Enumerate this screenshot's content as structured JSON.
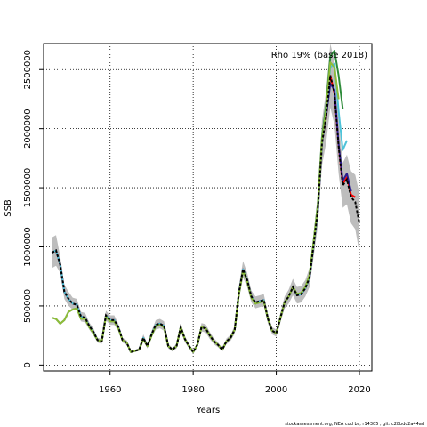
{
  "chart_data": {
    "type": "line",
    "title": "",
    "annotation": "Rho 19% (base 2018)",
    "xlabel": "Years",
    "ylabel": "SSB",
    "xlim": [
      1944,
      2023
    ],
    "ylim": [
      -50000,
      2720000
    ],
    "xticks": [
      1960,
      1980,
      2000,
      2020
    ],
    "yticks": [
      0,
      500000,
      1000000,
      1500000,
      2000000,
      2500000
    ],
    "ytick_labels": [
      "0",
      "500000",
      "1000000",
      "1500000",
      "2000000",
      "2500000"
    ],
    "grid": true,
    "footer": "stockassessment.org, NEA cod bs, r14305 , git: c28bdc2a44ad",
    "band_color": "#bdbdbd",
    "base_color": "#000000",
    "base_series": {
      "x": [
        1946,
        1947,
        1948,
        1949,
        1950,
        1951,
        1952,
        1953,
        1954,
        1955,
        1956,
        1957,
        1958,
        1959,
        1960,
        1961,
        1962,
        1963,
        1964,
        1965,
        1966,
        1967,
        1968,
        1969,
        1970,
        1971,
        1972,
        1973,
        1974,
        1975,
        1976,
        1977,
        1978,
        1979,
        1980,
        1981,
        1982,
        1983,
        1984,
        1985,
        1986,
        1987,
        1988,
        1989,
        1990,
        1991,
        1992,
        1993,
        1994,
        1995,
        1996,
        1997,
        1998,
        1999,
        2000,
        2001,
        2002,
        2003,
        2004,
        2005,
        2006,
        2007,
        2008,
        2009,
        2010,
        2011,
        2012,
        2013,
        2014,
        2015,
        2016,
        2017,
        2018,
        2019,
        2020
      ],
      "y": [
        950000,
        970000,
        850000,
        620000,
        560000,
        520000,
        510000,
        410000,
        400000,
        330000,
        280000,
        210000,
        200000,
        420000,
        380000,
        380000,
        320000,
        210000,
        190000,
        110000,
        120000,
        130000,
        230000,
        160000,
        260000,
        340000,
        350000,
        330000,
        160000,
        130000,
        160000,
        320000,
        220000,
        160000,
        110000,
        170000,
        320000,
        310000,
        250000,
        200000,
        170000,
        130000,
        200000,
        230000,
        300000,
        610000,
        810000,
        720000,
        580000,
        530000,
        540000,
        550000,
        390000,
        290000,
        270000,
        400000,
        530000,
        580000,
        660000,
        590000,
        600000,
        650000,
        740000,
        1020000,
        1310000,
        1880000,
        2100000,
        2450000,
        2300000,
        1850000,
        1520000,
        1570000,
        1420000,
        1380000,
        1200000
      ],
      "lower": [
        820000,
        840000,
        780000,
        560000,
        500000,
        470000,
        460000,
        370000,
        360000,
        300000,
        250000,
        190000,
        180000,
        380000,
        340000,
        340000,
        290000,
        190000,
        170000,
        100000,
        110000,
        120000,
        200000,
        140000,
        230000,
        300000,
        310000,
        290000,
        140000,
        115000,
        140000,
        285000,
        195000,
        140000,
        95000,
        150000,
        285000,
        275000,
        220000,
        175000,
        150000,
        115000,
        175000,
        205000,
        265000,
        550000,
        740000,
        660000,
        530000,
        480000,
        490000,
        500000,
        350000,
        260000,
        240000,
        360000,
        480000,
        520000,
        590000,
        520000,
        530000,
        580000,
        660000,
        920000,
        1180000,
        1690000,
        1880000,
        2180000,
        2030000,
        1620000,
        1330000,
        1360000,
        1200000,
        1150000,
        950000
      ],
      "upper": [
        1080000,
        1100000,
        920000,
        680000,
        620000,
        570000,
        560000,
        450000,
        440000,
        360000,
        310000,
        230000,
        220000,
        460000,
        420000,
        420000,
        350000,
        230000,
        210000,
        120000,
        130000,
        140000,
        260000,
        180000,
        290000,
        380000,
        390000,
        370000,
        180000,
        145000,
        180000,
        355000,
        245000,
        180000,
        125000,
        190000,
        355000,
        345000,
        280000,
        225000,
        190000,
        145000,
        225000,
        255000,
        335000,
        670000,
        880000,
        780000,
        630000,
        580000,
        590000,
        600000,
        430000,
        320000,
        300000,
        440000,
        580000,
        640000,
        730000,
        660000,
        670000,
        720000,
        820000,
        1120000,
        1440000,
        2070000,
        2320000,
        2720000,
        2570000,
        2080000,
        1710000,
        1780000,
        1640000,
        1610000,
        1450000
      ]
    },
    "retro_series": [
      {
        "color": "#ff0000",
        "x": [
          1946,
          1947,
          1948,
          1949,
          1950,
          1951,
          1952,
          1953,
          1954,
          1955,
          1956,
          1957,
          1958,
          1959,
          1960,
          1961,
          1962,
          1963,
          1964,
          1965,
          1966,
          1967,
          1968,
          1969,
          1970,
          1971,
          1972,
          1973,
          1974,
          1975,
          1976,
          1977,
          1978,
          1979,
          1980,
          1981,
          1982,
          1983,
          1984,
          1985,
          1986,
          1987,
          1988,
          1989,
          1990,
          1991,
          1992,
          1993,
          1994,
          1995,
          1996,
          1997,
          1998,
          1999,
          2000,
          2001,
          2002,
          2003,
          2004,
          2005,
          2006,
          2007,
          2008,
          2009,
          2010,
          2011,
          2012,
          2013,
          2014,
          2015,
          2016,
          2017,
          2018,
          2019
        ],
        "y": [
          950000,
          970000,
          850000,
          620000,
          560000,
          520000,
          510000,
          410000,
          400000,
          330000,
          280000,
          210000,
          200000,
          420000,
          380000,
          380000,
          320000,
          210000,
          190000,
          110000,
          120000,
          130000,
          230000,
          160000,
          260000,
          340000,
          350000,
          330000,
          160000,
          130000,
          160000,
          320000,
          220000,
          160000,
          110000,
          170000,
          320000,
          310000,
          250000,
          200000,
          170000,
          130000,
          200000,
          230000,
          300000,
          610000,
          810000,
          720000,
          580000,
          530000,
          540000,
          550000,
          390000,
          290000,
          270000,
          400000,
          530000,
          580000,
          660000,
          590000,
          600000,
          650000,
          740000,
          1020000,
          1310000,
          1880000,
          2100000,
          2450000,
          2300000,
          1860000,
          1530000,
          1590000,
          1440000,
          1420000
        ]
      },
      {
        "color": "#2c1f8f",
        "x": [
          1946,
          1947,
          1948,
          1949,
          1950,
          1951,
          1952,
          1953,
          1954,
          1955,
          1956,
          1957,
          1958,
          1959,
          1960,
          1961,
          1962,
          1963,
          1964,
          1965,
          1966,
          1967,
          1968,
          1969,
          1970,
          1971,
          1972,
          1973,
          1974,
          1975,
          1976,
          1977,
          1978,
          1979,
          1980,
          1981,
          1982,
          1983,
          1984,
          1985,
          1986,
          1987,
          1988,
          1989,
          1990,
          1991,
          1992,
          1993,
          1994,
          1995,
          1996,
          1997,
          1998,
          1999,
          2000,
          2001,
          2002,
          2003,
          2004,
          2005,
          2006,
          2007,
          2008,
          2009,
          2010,
          2011,
          2012,
          2013,
          2014,
          2015,
          2016,
          2017,
          2018
        ],
        "y": [
          950000,
          970000,
          850000,
          620000,
          560000,
          520000,
          510000,
          410000,
          400000,
          330000,
          280000,
          210000,
          200000,
          420000,
          380000,
          380000,
          320000,
          210000,
          190000,
          110000,
          120000,
          130000,
          230000,
          160000,
          260000,
          340000,
          350000,
          330000,
          160000,
          130000,
          160000,
          320000,
          220000,
          160000,
          110000,
          170000,
          320000,
          310000,
          250000,
          200000,
          170000,
          130000,
          200000,
          230000,
          300000,
          610000,
          810000,
          720000,
          580000,
          530000,
          540000,
          550000,
          390000,
          290000,
          270000,
          400000,
          530000,
          580000,
          660000,
          590000,
          600000,
          650000,
          740000,
          1020000,
          1310000,
          1880000,
          2110000,
          2380000,
          2330000,
          1870000,
          1560000,
          1620000,
          1470000
        ]
      },
      {
        "color": "#4fc3d9",
        "x": [
          1946,
          1947,
          1948,
          1949,
          1950,
          1951,
          1952,
          1953,
          1954,
          1955,
          1956,
          1957,
          1958,
          1959,
          1960,
          1961,
          1962,
          1963,
          1964,
          1965,
          1966,
          1967,
          1968,
          1969,
          1970,
          1971,
          1972,
          1973,
          1974,
          1975,
          1976,
          1977,
          1978,
          1979,
          1980,
          1981,
          1982,
          1983,
          1984,
          1985,
          1986,
          1987,
          1988,
          1989,
          1990,
          1991,
          1992,
          1993,
          1994,
          1995,
          1996,
          1997,
          1998,
          1999,
          2000,
          2001,
          2002,
          2003,
          2004,
          2005,
          2006,
          2007,
          2008,
          2009,
          2010,
          2011,
          2012,
          2013,
          2014,
          2015,
          2016,
          2017
        ],
        "y": [
          950000,
          970000,
          850000,
          620000,
          560000,
          520000,
          510000,
          410000,
          400000,
          330000,
          280000,
          210000,
          200000,
          420000,
          380000,
          380000,
          320000,
          210000,
          190000,
          110000,
          120000,
          130000,
          230000,
          160000,
          260000,
          340000,
          350000,
          330000,
          160000,
          130000,
          160000,
          320000,
          220000,
          160000,
          110000,
          170000,
          320000,
          310000,
          250000,
          200000,
          170000,
          130000,
          200000,
          230000,
          300000,
          610000,
          810000,
          720000,
          580000,
          530000,
          540000,
          550000,
          390000,
          290000,
          270000,
          400000,
          530000,
          580000,
          660000,
          590000,
          600000,
          650000,
          740000,
          1020000,
          1310000,
          1880000,
          2150000,
          2520000,
          2550000,
          2150000,
          1820000,
          1900000
        ]
      },
      {
        "color": "#2e8b3a",
        "x": [
          1946,
          1947,
          1948,
          1949,
          1950,
          1951,
          1952,
          1953,
          1954,
          1955,
          1956,
          1957,
          1958,
          1959,
          1960,
          1961,
          1962,
          1963,
          1964,
          1965,
          1966,
          1967,
          1968,
          1969,
          1970,
          1971,
          1972,
          1973,
          1974,
          1975,
          1976,
          1977,
          1978,
          1979,
          1980,
          1981,
          1982,
          1983,
          1984,
          1985,
          1986,
          1987,
          1988,
          1989,
          1990,
          1991,
          1992,
          1993,
          1994,
          1995,
          1996,
          1997,
          1998,
          1999,
          2000,
          2001,
          2002,
          2003,
          2004,
          2005,
          2006,
          2007,
          2008,
          2009,
          2010,
          2011,
          2012,
          2013,
          2014,
          2015,
          2016
        ],
        "y": [
          400000,
          390000,
          350000,
          380000,
          450000,
          470000,
          480000,
          390000,
          390000,
          320000,
          270000,
          210000,
          200000,
          410000,
          370000,
          370000,
          310000,
          210000,
          190000,
          110000,
          120000,
          130000,
          220000,
          160000,
          250000,
          330000,
          340000,
          320000,
          160000,
          130000,
          160000,
          320000,
          220000,
          160000,
          110000,
          170000,
          320000,
          310000,
          250000,
          200000,
          170000,
          130000,
          200000,
          230000,
          300000,
          600000,
          800000,
          710000,
          570000,
          520000,
          530000,
          540000,
          390000,
          290000,
          270000,
          400000,
          530000,
          580000,
          660000,
          600000,
          610000,
          660000,
          760000,
          1050000,
          1360000,
          1930000,
          2200000,
          2610000,
          2660000,
          2450000,
          2170000
        ]
      },
      {
        "color": "#8fbc3a",
        "x": [
          1946,
          1947,
          1948,
          1949,
          1950,
          1951,
          1952,
          1953,
          1954,
          1955,
          1956,
          1957,
          1958,
          1959,
          1960,
          1961,
          1962,
          1963,
          1964,
          1965,
          1966,
          1967,
          1968,
          1969,
          1970,
          1971,
          1972,
          1973,
          1974,
          1975,
          1976,
          1977,
          1978,
          1979,
          1980,
          1981,
          1982,
          1983,
          1984,
          1985,
          1986,
          1987,
          1988,
          1989,
          1990,
          1991,
          1992,
          1993,
          1994,
          1995,
          1996,
          1997,
          1998,
          1999,
          2000,
          2001,
          2002,
          2003,
          2004,
          2005,
          2006,
          2007,
          2008,
          2009,
          2010,
          2011,
          2012,
          2013,
          2014,
          2015
        ],
        "y": [
          400000,
          390000,
          350000,
          380000,
          450000,
          470000,
          480000,
          390000,
          390000,
          320000,
          270000,
          210000,
          200000,
          410000,
          370000,
          370000,
          310000,
          210000,
          190000,
          110000,
          120000,
          130000,
          220000,
          160000,
          250000,
          330000,
          340000,
          320000,
          160000,
          130000,
          160000,
          320000,
          220000,
          160000,
          110000,
          170000,
          320000,
          310000,
          250000,
          200000,
          170000,
          130000,
          200000,
          230000,
          300000,
          600000,
          800000,
          710000,
          570000,
          520000,
          530000,
          540000,
          390000,
          290000,
          270000,
          400000,
          530000,
          580000,
          660000,
          600000,
          610000,
          660000,
          760000,
          1040000,
          1340000,
          1900000,
          2160000,
          2560000,
          2520000,
          2250000
        ]
      }
    ]
  }
}
